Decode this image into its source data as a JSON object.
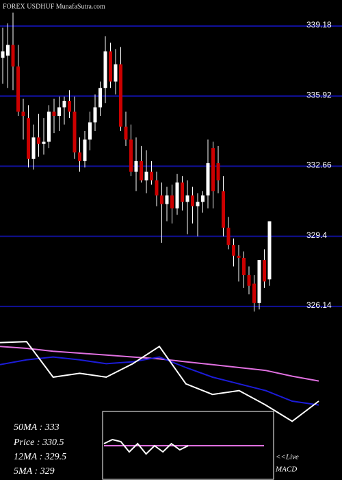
{
  "chart_data": [
    {
      "type": "candlestick",
      "title": "FOREX  USDHUF MunafaSutra.com",
      "open": [
        337.7,
        337.8,
        338.3,
        337.3,
        335.2,
        334.9,
        333.0,
        334.0,
        333.7,
        333.8,
        335.2,
        335.0,
        335.4,
        335.7,
        335.2,
        333.3,
        332.9,
        333.9,
        334.7,
        335.4,
        336.3,
        338.0,
        336.6,
        337.4,
        334.5,
        333.9,
        332.4,
        332.9,
        332.0,
        332.4,
        332.0,
        331.3,
        330.9,
        331.3,
        330.7,
        331.9,
        331.0,
        331.3,
        330.8,
        331.0,
        331.3,
        333.5,
        332.8,
        331.5,
        329.8,
        329.0,
        328.5,
        328.4,
        327.6,
        327.2,
        326.3,
        328.3,
        327.4
      ],
      "high": [
        339.1,
        339.3,
        339.8,
        338.3,
        335.8,
        335.5,
        334.6,
        335.1,
        334.9,
        335.5,
        335.8,
        335.9,
        335.9,
        336.2,
        335.9,
        334.0,
        334.3,
        335.2,
        336.0,
        336.6,
        338.7,
        338.4,
        338.1,
        338.2,
        335.2,
        334.6,
        334.0,
        333.6,
        333.4,
        332.9,
        332.4,
        331.9,
        331.7,
        331.8,
        332.3,
        332.2,
        332.0,
        331.7,
        331.4,
        331.5,
        333.9,
        333.8,
        333.6,
        332.2,
        330.3,
        329.3,
        329.0,
        328.7,
        328.0,
        327.6,
        328.3,
        328.8,
        330.1
      ],
      "low": [
        336.5,
        336.3,
        336.2,
        335.0,
        333.9,
        332.6,
        332.5,
        333.1,
        333.2,
        333.5,
        334.2,
        334.3,
        334.6,
        334.9,
        333.0,
        332.4,
        332.6,
        333.4,
        334.3,
        335.0,
        335.6,
        336.3,
        336.0,
        334.3,
        333.6,
        332.2,
        331.5,
        331.9,
        331.4,
        331.8,
        330.8,
        329.1,
        330.1,
        330.0,
        330.4,
        330.6,
        329.5,
        330.0,
        329.4,
        330.5,
        330.7,
        330.7,
        331.4,
        329.4,
        328.8,
        328.0,
        327.3,
        327.0,
        326.7,
        325.9,
        326.0,
        327.0,
        327.1
      ],
      "close": [
        338.0,
        338.3,
        337.3,
        335.2,
        335.0,
        333.0,
        334.0,
        333.7,
        333.8,
        335.2,
        335.0,
        335.4,
        335.7,
        335.2,
        333.3,
        332.9,
        333.9,
        334.7,
        335.4,
        336.3,
        338.0,
        336.6,
        337.4,
        334.5,
        333.9,
        332.4,
        332.9,
        332.0,
        332.4,
        332.0,
        331.3,
        330.9,
        331.3,
        330.7,
        331.9,
        331.0,
        331.3,
        330.8,
        331.0,
        331.3,
        332.8,
        331.5,
        332.0,
        329.8,
        329.0,
        328.5,
        328.4,
        327.6,
        327.1,
        326.3,
        328.3,
        327.3,
        330.1
      ],
      "up_color": "#ffffff",
      "down_color": "#cc0000",
      "grid_color": "#10109a",
      "ylim": [
        326.04,
        340.39
      ],
      "yticks": [
        339.18,
        335.92,
        332.66,
        329.4,
        326.14
      ],
      "annotations": [
        "50MA : 333",
        "Price   : 330.5",
        "12MA : 329.5",
        "5MA : 329"
      ]
    },
    {
      "type": "line",
      "ylim": [
        0,
        100
      ],
      "series": [
        {
          "color": "#e070e0",
          "values": [
            82,
            80,
            77,
            75,
            73,
            71,
            69,
            66,
            63,
            60,
            57,
            51,
            46
          ]
        },
        {
          "color": "#1c1cd8",
          "values": [
            63,
            68,
            71,
            68,
            64,
            66,
            71,
            60,
            50,
            43,
            36,
            25,
            21
          ]
        },
        {
          "color": "#ffffff",
          "values": [
            86,
            87,
            50,
            54,
            50,
            64,
            82,
            43,
            32,
            36,
            21,
            4,
            25
          ]
        }
      ]
    },
    {
      "type": "line",
      "ylim": [
        -1,
        1
      ],
      "annotations": [
        "<<Live",
        "MACD"
      ],
      "series": [
        {
          "color": "#e070e0",
          "values": [
            0,
            0,
            0,
            0,
            0,
            0,
            0,
            0,
            0,
            0,
            0,
            0,
            0,
            0,
            0,
            0,
            0,
            0,
            0,
            0
          ]
        },
        {
          "color": "#ffffff",
          "values": [
            0.1,
            0.3,
            0.2,
            -0.3,
            0.1,
            -0.4,
            0.0,
            -0.3,
            0.1,
            -0.2,
            0.0
          ]
        }
      ]
    }
  ]
}
